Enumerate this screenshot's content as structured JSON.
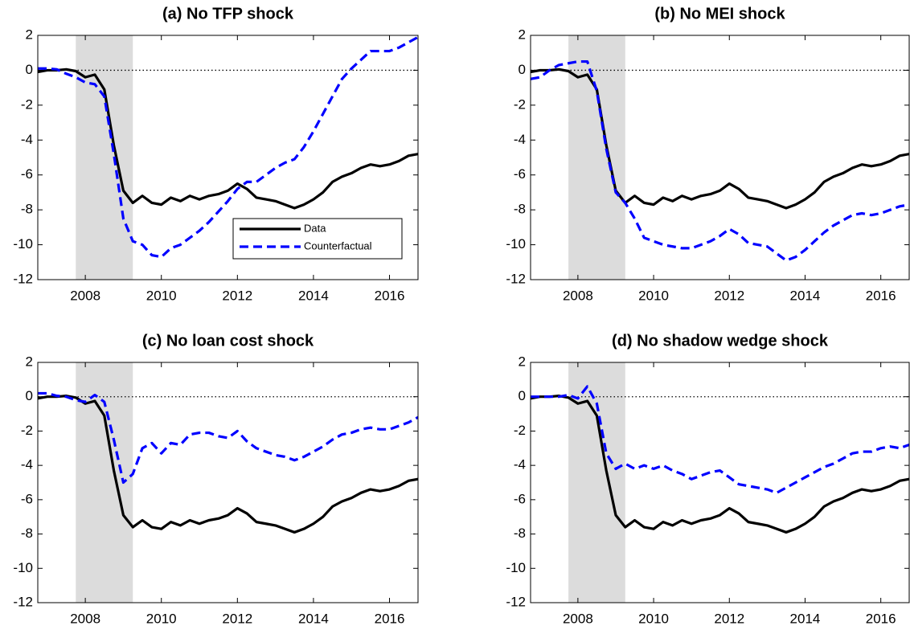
{
  "chart_data": [
    {
      "type": "line",
      "title": "(a) No TFP shock",
      "x": [
        2006.75,
        2007,
        2007.25,
        2007.5,
        2007.75,
        2008,
        2008.25,
        2008.5,
        2008.75,
        2009,
        2009.25,
        2009.5,
        2009.75,
        2010,
        2010.25,
        2010.5,
        2010.75,
        2011,
        2011.25,
        2011.5,
        2011.75,
        2012,
        2012.25,
        2012.5,
        2012.75,
        2013,
        2013.25,
        2013.5,
        2013.75,
        2014,
        2014.25,
        2014.5,
        2014.75,
        2015,
        2015.25,
        2015.5,
        2015.75,
        2016,
        2016.25,
        2016.5,
        2016.75
      ],
      "series": [
        {
          "name": "Data",
          "color": "#000000",
          "dash": false,
          "values": [
            -0.1,
            0,
            0,
            0.05,
            -0.05,
            -0.4,
            -0.25,
            -1.1,
            -4.3,
            -6.9,
            -7.6,
            -7.2,
            -7.6,
            -7.7,
            -7.3,
            -7.5,
            -7.2,
            -7.4,
            -7.2,
            -7.1,
            -6.9,
            -6.5,
            -6.8,
            -7.3,
            -7.4,
            -7.5,
            -7.7,
            -7.9,
            -7.7,
            -7.4,
            -7.0,
            -6.4,
            -6.1,
            -5.9,
            -5.6,
            -5.4,
            -5.5,
            -5.4,
            -5.2,
            -4.9,
            -4.8
          ]
        },
        {
          "name": "Counterfactual",
          "color": "#0000ff",
          "dash": true,
          "values": [
            0.1,
            0.1,
            0.05,
            -0.2,
            -0.4,
            -0.7,
            -0.8,
            -1.5,
            -4.8,
            -8.5,
            -9.8,
            -10.0,
            -10.6,
            -10.7,
            -10.2,
            -10.0,
            -9.6,
            -9.2,
            -8.7,
            -8.1,
            -7.5,
            -6.8,
            -6.4,
            -6.4,
            -6.0,
            -5.6,
            -5.3,
            -5.1,
            -4.4,
            -3.5,
            -2.5,
            -1.5,
            -0.5,
            0.1,
            0.6,
            1.1,
            1.1,
            1.1,
            1.3,
            1.6,
            1.9
          ]
        }
      ],
      "xlim": [
        2006.75,
        2016.75
      ],
      "ylim": [
        -12,
        2
      ],
      "xticks": [
        2008,
        2010,
        2012,
        2014,
        2016
      ],
      "yticks": [
        2,
        0,
        -2,
        -4,
        -6,
        -8,
        -10,
        -12
      ],
      "shade": [
        2007.75,
        2009.25
      ],
      "zero_line": true,
      "legend": "lower right"
    },
    {
      "type": "line",
      "title": "(b) No MEI shock",
      "x": [
        2006.75,
        2007,
        2007.25,
        2007.5,
        2007.75,
        2008,
        2008.25,
        2008.5,
        2008.75,
        2009,
        2009.25,
        2009.5,
        2009.75,
        2010,
        2010.25,
        2010.5,
        2010.75,
        2011,
        2011.25,
        2011.5,
        2011.75,
        2012,
        2012.25,
        2012.5,
        2012.75,
        2013,
        2013.25,
        2013.5,
        2013.75,
        2014,
        2014.25,
        2014.5,
        2014.75,
        2015,
        2015.25,
        2015.5,
        2015.75,
        2016,
        2016.25,
        2016.5,
        2016.75
      ],
      "series": [
        {
          "color": "#000000",
          "dash": false,
          "values": [
            -0.1,
            0,
            0,
            0.05,
            -0.05,
            -0.4,
            -0.25,
            -1.1,
            -4.3,
            -6.9,
            -7.6,
            -7.2,
            -7.6,
            -7.7,
            -7.3,
            -7.5,
            -7.2,
            -7.4,
            -7.2,
            -7.1,
            -6.9,
            -6.5,
            -6.8,
            -7.3,
            -7.4,
            -7.5,
            -7.7,
            -7.9,
            -7.7,
            -7.4,
            -7.0,
            -6.4,
            -6.1,
            -5.9,
            -5.6,
            -5.4,
            -5.5,
            -5.4,
            -5.2,
            -4.9,
            -4.8
          ]
        },
        {
          "color": "#0000ff",
          "dash": true,
          "values": [
            -0.5,
            -0.4,
            0.0,
            0.3,
            0.4,
            0.5,
            0.5,
            -1.2,
            -4.5,
            -7.0,
            -7.6,
            -8.5,
            -9.6,
            -9.8,
            -10.0,
            -10.1,
            -10.2,
            -10.2,
            -10.0,
            -9.8,
            -9.5,
            -9.1,
            -9.4,
            -9.9,
            -10.0,
            -10.1,
            -10.5,
            -10.9,
            -10.7,
            -10.3,
            -9.8,
            -9.3,
            -8.9,
            -8.6,
            -8.3,
            -8.2,
            -8.3,
            -8.2,
            -8.0,
            -7.8,
            -7.7
          ]
        }
      ],
      "xlim": [
        2006.75,
        2016.75
      ],
      "ylim": [
        -12,
        2
      ],
      "xticks": [
        2008,
        2010,
        2012,
        2014,
        2016
      ],
      "yticks": [
        2,
        0,
        -2,
        -4,
        -6,
        -8,
        -10,
        -12
      ],
      "shade": [
        2007.75,
        2009.25
      ],
      "zero_line": true
    },
    {
      "type": "line",
      "title": "(c) No loan cost shock",
      "x": [
        2006.75,
        2007,
        2007.25,
        2007.5,
        2007.75,
        2008,
        2008.25,
        2008.5,
        2008.75,
        2009,
        2009.25,
        2009.5,
        2009.75,
        2010,
        2010.25,
        2010.5,
        2010.75,
        2011,
        2011.25,
        2011.5,
        2011.75,
        2012,
        2012.25,
        2012.5,
        2012.75,
        2013,
        2013.25,
        2013.5,
        2013.75,
        2014,
        2014.25,
        2014.5,
        2014.75,
        2015,
        2015.25,
        2015.5,
        2015.75,
        2016,
        2016.25,
        2016.5,
        2016.75
      ],
      "series": [
        {
          "color": "#000000",
          "dash": false,
          "values": [
            -0.1,
            0,
            0,
            0.05,
            -0.05,
            -0.4,
            -0.25,
            -1.1,
            -4.3,
            -6.9,
            -7.6,
            -7.2,
            -7.6,
            -7.7,
            -7.3,
            -7.5,
            -7.2,
            -7.4,
            -7.2,
            -7.1,
            -6.9,
            -6.5,
            -6.8,
            -7.3,
            -7.4,
            -7.5,
            -7.7,
            -7.9,
            -7.7,
            -7.4,
            -7.0,
            -6.4,
            -6.1,
            -5.9,
            -5.6,
            -5.4,
            -5.5,
            -5.4,
            -5.2,
            -4.9,
            -4.8
          ]
        },
        {
          "color": "#0000ff",
          "dash": true,
          "values": [
            0.2,
            0.2,
            0.05,
            0.0,
            -0.2,
            -0.3,
            0.1,
            -0.3,
            -2.5,
            -5.0,
            -4.5,
            -3.0,
            -2.7,
            -3.3,
            -2.7,
            -2.8,
            -2.2,
            -2.1,
            -2.1,
            -2.3,
            -2.4,
            -2.0,
            -2.6,
            -3.0,
            -3.2,
            -3.4,
            -3.5,
            -3.7,
            -3.5,
            -3.2,
            -2.9,
            -2.5,
            -2.2,
            -2.1,
            -1.9,
            -1.8,
            -1.9,
            -1.9,
            -1.7,
            -1.5,
            -1.2
          ]
        }
      ],
      "xlim": [
        2006.75,
        2016.75
      ],
      "ylim": [
        -12,
        2
      ],
      "xticks": [
        2008,
        2010,
        2012,
        2014,
        2016
      ],
      "yticks": [
        2,
        0,
        -2,
        -4,
        -6,
        -8,
        -10,
        -12
      ],
      "shade": [
        2007.75,
        2009.25
      ],
      "zero_line": true
    },
    {
      "type": "line",
      "title": "(d) No shadow wedge shock",
      "x": [
        2006.75,
        2007,
        2007.25,
        2007.5,
        2007.75,
        2008,
        2008.25,
        2008.5,
        2008.75,
        2009,
        2009.25,
        2009.5,
        2009.75,
        2010,
        2010.25,
        2010.5,
        2010.75,
        2011,
        2011.25,
        2011.5,
        2011.75,
        2012,
        2012.25,
        2012.5,
        2012.75,
        2013,
        2013.25,
        2013.5,
        2013.75,
        2014,
        2014.25,
        2014.5,
        2014.75,
        2015,
        2015.25,
        2015.5,
        2015.75,
        2016,
        2016.25,
        2016.5,
        2016.75
      ],
      "series": [
        {
          "color": "#000000",
          "dash": false,
          "values": [
            -0.1,
            0,
            0,
            0.05,
            -0.05,
            -0.4,
            -0.25,
            -1.1,
            -4.3,
            -6.9,
            -7.6,
            -7.2,
            -7.6,
            -7.7,
            -7.3,
            -7.5,
            -7.2,
            -7.4,
            -7.2,
            -7.1,
            -6.9,
            -6.5,
            -6.8,
            -7.3,
            -7.4,
            -7.5,
            -7.7,
            -7.9,
            -7.7,
            -7.4,
            -7.0,
            -6.4,
            -6.1,
            -5.9,
            -5.6,
            -5.4,
            -5.5,
            -5.4,
            -5.2,
            -4.9,
            -4.8
          ]
        },
        {
          "color": "#0000ff",
          "dash": true,
          "values": [
            0,
            0,
            0,
            0,
            0.1,
            -0.1,
            0.6,
            -0.4,
            -3.3,
            -4.2,
            -3.9,
            -4.2,
            -4.0,
            -4.2,
            -4.0,
            -4.3,
            -4.5,
            -4.8,
            -4.6,
            -4.4,
            -4.3,
            -4.7,
            -5.1,
            -5.2,
            -5.3,
            -5.4,
            -5.6,
            -5.3,
            -5.0,
            -4.7,
            -4.4,
            -4.1,
            -3.9,
            -3.6,
            -3.3,
            -3.2,
            -3.2,
            -3.0,
            -2.9,
            -3.0,
            -2.8
          ]
        }
      ],
      "xlim": [
        2006.75,
        2016.75
      ],
      "ylim": [
        -12,
        2
      ],
      "xticks": [
        2008,
        2010,
        2012,
        2014,
        2016
      ],
      "yticks": [
        2,
        0,
        -2,
        -4,
        -6,
        -8,
        -10,
        -12
      ],
      "shade": [
        2007.75,
        2009.25
      ],
      "zero_line": true
    }
  ]
}
